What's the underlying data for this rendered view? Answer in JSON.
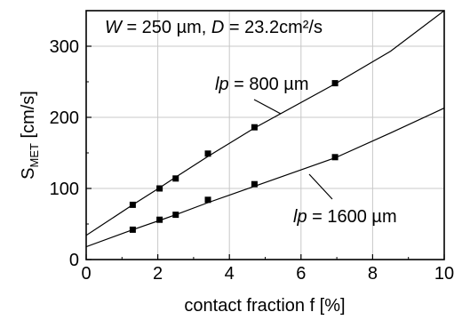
{
  "chart_data": {
    "type": "scatter",
    "xlabel": "contact fraction f [%]",
    "ylabel": {
      "main": "S",
      "sub": "MET",
      "unit": " [cm/s]"
    },
    "xlim": [
      0,
      10
    ],
    "ylim": [
      0,
      350
    ],
    "xticks": [
      0,
      2,
      4,
      6,
      8,
      10
    ],
    "yticks": [
      0,
      100,
      200,
      300
    ],
    "grid": true,
    "params_annotation": {
      "w_sym": "W",
      "w_val": " = 250 µm, ",
      "d_sym": "D",
      "d_val": " = 23.2cm²/s"
    },
    "series": [
      {
        "label_sym": "lp",
        "label_val": " = 800 µm",
        "points": [
          {
            "x": 1.3,
            "y": 77
          },
          {
            "x": 2.05,
            "y": 100
          },
          {
            "x": 2.5,
            "y": 114
          },
          {
            "x": 3.4,
            "y": 149
          },
          {
            "x": 4.7,
            "y": 186
          },
          {
            "x": 6.95,
            "y": 248
          }
        ],
        "fit": [
          [
            0,
            34
          ],
          [
            1.3,
            77
          ],
          [
            2.05,
            101
          ],
          [
            2.5,
            116
          ],
          [
            3.4,
            145
          ],
          [
            4.7,
            185
          ],
          [
            6.95,
            247
          ],
          [
            8.5,
            293
          ],
          [
            10,
            350
          ]
        ]
      },
      {
        "label_sym": "lp",
        "label_val": " = 1600 µm",
        "points": [
          {
            "x": 1.3,
            "y": 42
          },
          {
            "x": 2.05,
            "y": 56
          },
          {
            "x": 2.5,
            "y": 63
          },
          {
            "x": 3.4,
            "y": 84
          },
          {
            "x": 4.7,
            "y": 106
          },
          {
            "x": 6.95,
            "y": 144
          }
        ],
        "fit": [
          [
            0,
            18
          ],
          [
            1.3,
            42
          ],
          [
            2.05,
            55
          ],
          [
            2.5,
            63
          ],
          [
            3.4,
            80
          ],
          [
            4.7,
            103
          ],
          [
            6.95,
            143
          ],
          [
            8.5,
            178
          ],
          [
            10,
            213
          ]
        ]
      }
    ]
  }
}
